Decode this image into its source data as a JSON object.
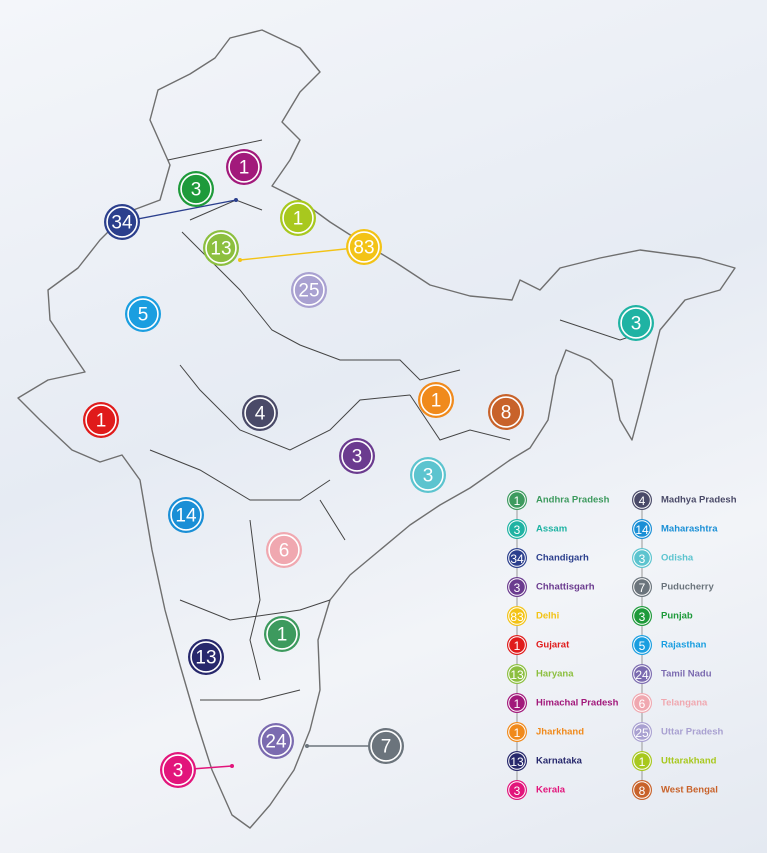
{
  "states": [
    {
      "name": "Andhra Pradesh",
      "count": 1,
      "color": "#3d9a5e"
    },
    {
      "name": "Assam",
      "count": 3,
      "color": "#1fb3a3"
    },
    {
      "name": "Chandigarh",
      "count": 34,
      "color": "#2b3f8d"
    },
    {
      "name": "Chhattisgarh",
      "count": 3,
      "color": "#6b3b8f"
    },
    {
      "name": "Delhi",
      "count": 83,
      "color": "#f3c316"
    },
    {
      "name": "Gujarat",
      "count": 1,
      "color": "#e01b1b"
    },
    {
      "name": "Haryana",
      "count": 13,
      "color": "#8cbf3f"
    },
    {
      "name": "Himachal Pradesh",
      "count": 1,
      "color": "#a2197b"
    },
    {
      "name": "Jharkhand",
      "count": 1,
      "color": "#f08a1c"
    },
    {
      "name": "Karnataka",
      "count": 13,
      "color": "#27286c"
    },
    {
      "name": "Kerala",
      "count": 3,
      "color": "#e2157b"
    },
    {
      "name": "Madhya Pradesh",
      "count": 4,
      "color": "#4a4a68"
    },
    {
      "name": "Maharashtra",
      "count": 14,
      "color": "#1a8fd6"
    },
    {
      "name": "Odisha",
      "count": 3,
      "color": "#5cc4cf"
    },
    {
      "name": "Puducherry",
      "count": 7,
      "color": "#6b747c"
    },
    {
      "name": "Punjab",
      "count": 3,
      "color": "#1e9a3a"
    },
    {
      "name": "Rajasthan",
      "count": 5,
      "color": "#1a9ee0"
    },
    {
      "name": "Tamil Nadu",
      "count": 24,
      "color": "#7b6bb0"
    },
    {
      "name": "Telangana",
      "count": 6,
      "color": "#f0a8b0"
    },
    {
      "name": "Uttar Pradesh",
      "count": 25,
      "color": "#a9a1d1"
    },
    {
      "name": "Uttarakhand",
      "count": 1,
      "color": "#a8c81e"
    },
    {
      "name": "West Bengal",
      "count": 8,
      "color": "#c8622a"
    }
  ]
}
